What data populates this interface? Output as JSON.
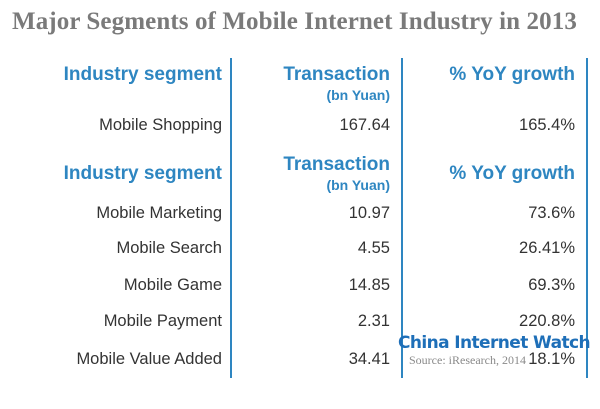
{
  "title": "Major Segments of Mobile Internet Industry in 2013",
  "headers": {
    "segment": "Industry segment",
    "transaction": "Transaction",
    "transaction_unit": "(bn Yuan)",
    "growth": "% YoY growth"
  },
  "top_rows": [
    {
      "segment": "Mobile Shopping",
      "transaction": "167.64",
      "growth": "165.4%"
    }
  ],
  "bottom_rows": [
    {
      "segment": "Mobile Marketing",
      "transaction": "10.97",
      "growth": "73.6%"
    },
    {
      "segment": "Mobile Search",
      "transaction": "4.55",
      "growth": "26.41%"
    },
    {
      "segment": "Mobile Game",
      "transaction": "14.85",
      "growth": "69.3%"
    },
    {
      "segment": "Mobile Payment",
      "transaction": "2.31",
      "growth": "220.8%"
    },
    {
      "segment": "Mobile Value Added",
      "transaction": "34.41",
      "growth": "18.1%"
    }
  ],
  "watermark": {
    "brand": "China Internet Watch",
    "source": "Source: iResearch, 2014"
  },
  "colors": {
    "accent": "#2e86c1",
    "title": "#7a7a7a",
    "text": "#333333"
  }
}
